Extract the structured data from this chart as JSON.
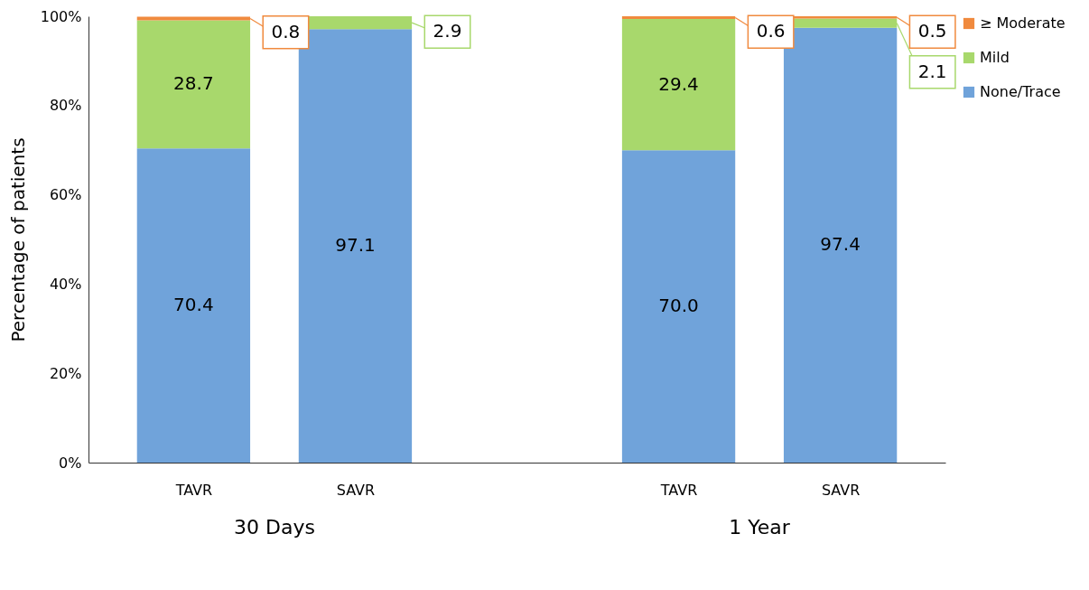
{
  "chart_data": {
    "type": "bar",
    "stacked": true,
    "ylabel": "Percentage of patients",
    "categories": [
      "TAVR",
      "SAVR",
      null,
      "TAVR",
      "SAVR"
    ],
    "series": [
      {
        "name": "None/Trace",
        "color": "#70a3da",
        "values": [
          70.4,
          97.1,
          null,
          70.0,
          97.4
        ],
        "value_labels": [
          "70.4",
          "97.1",
          null,
          "70.0",
          "97.4"
        ]
      },
      {
        "name": "Mild",
        "color": "#a8d86c",
        "values": [
          28.7,
          2.9,
          null,
          29.4,
          2.1
        ],
        "value_labels": [
          "28.7",
          "2.9",
          null,
          "29.4",
          "2.1"
        ]
      },
      {
        "name": "≥ Moderate",
        "color": "#f08a3e",
        "values": [
          0.8,
          0,
          null,
          0.6,
          0.5
        ],
        "value_labels": [
          "0.8",
          null,
          null,
          "0.6",
          "0.5"
        ]
      }
    ],
    "ylim": [
      0,
      100
    ],
    "yticks": [
      {
        "value": 0,
        "label": "0%"
      },
      {
        "value": 20,
        "label": "20%"
      },
      {
        "value": 40,
        "label": "40%"
      },
      {
        "value": 60,
        "label": "60%"
      },
      {
        "value": 80,
        "label": "80%"
      },
      {
        "value": 100,
        "label": "100%"
      }
    ],
    "annotations": [
      "30 Days",
      "1 Year"
    ],
    "grid": false,
    "legend": "right"
  }
}
